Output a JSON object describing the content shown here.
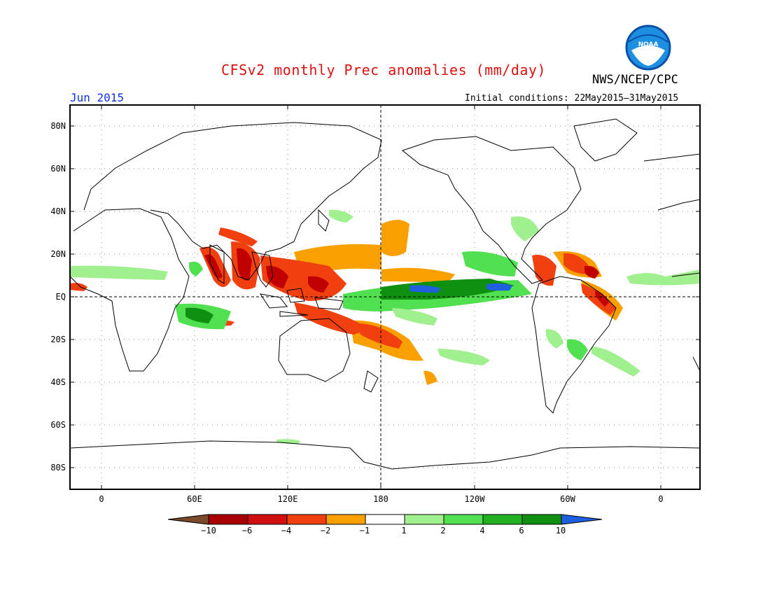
{
  "title": "CFSv2 monthly Prec anomalies (mm/day)",
  "agency": "NWS/NCEP/CPC",
  "logo_text": "NOAA",
  "month": "Jun 2015",
  "initial_conditions": "Initial conditions: 22May2015–31May2015",
  "map": {
    "y_ticks": [
      "80N",
      "60N",
      "40N",
      "20N",
      "EQ",
      "20S",
      "40S",
      "60S",
      "80S"
    ],
    "x_ticks": [
      "0",
      "60E",
      "120E",
      "180",
      "120W",
      "60W",
      "0"
    ],
    "reference_lines": [
      "EQ",
      "180"
    ]
  },
  "colorbar": {
    "ticks": [
      "−10",
      "−6",
      "−4",
      "−2",
      "−1",
      "1",
      "2",
      "4",
      "6",
      "10"
    ],
    "colors": [
      "#7a4a2a",
      "#a80000",
      "#d01010",
      "#f04010",
      "#f8a000",
      "#ffffff",
      "#a0f090",
      "#50e050",
      "#20b020",
      "#109010",
      "#2060e0"
    ]
  },
  "colors": {
    "dry_strong": "#c00000",
    "dry_mid": "#f04010",
    "dry_weak": "#f8a000",
    "wet_weak": "#a0f090",
    "wet_mid": "#50e050",
    "wet_strong": "#109010",
    "wet_extreme": "#2060e0"
  }
}
